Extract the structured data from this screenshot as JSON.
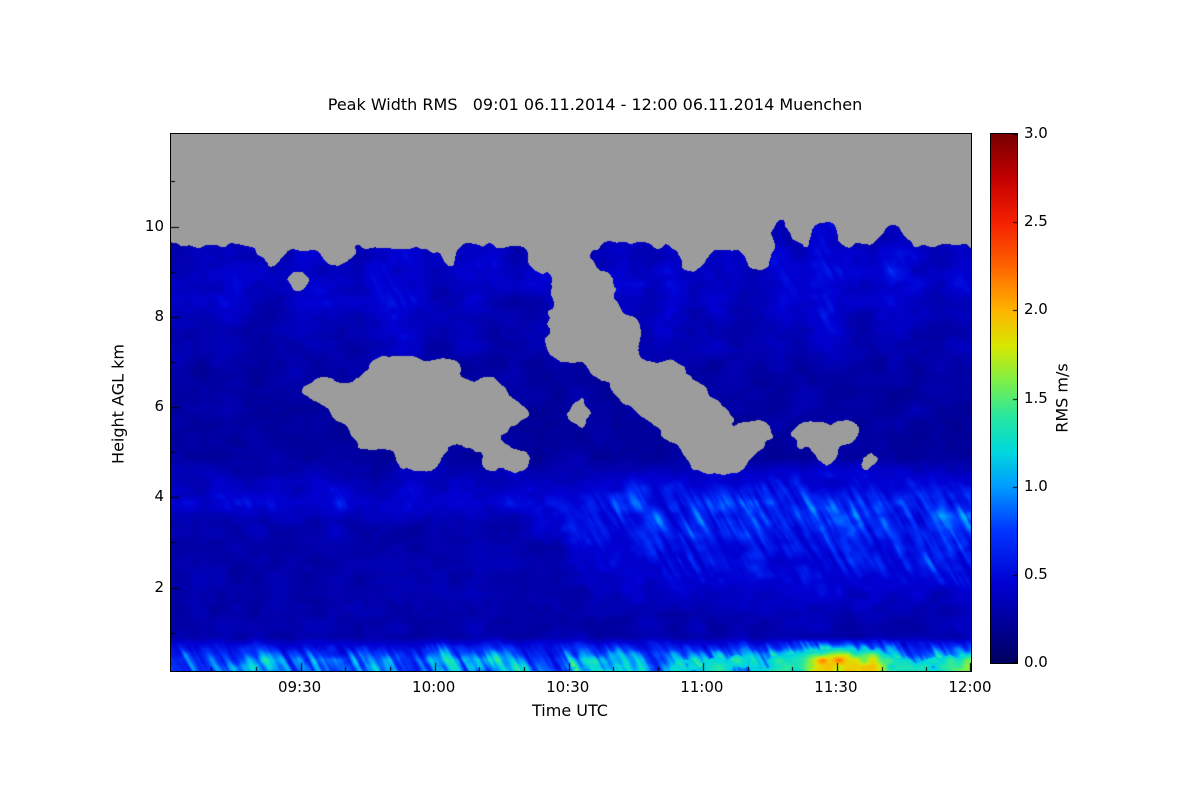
{
  "page": {
    "background": "#ffffff"
  },
  "chart_data": {
    "type": "heatmap",
    "title": "Peak Width RMS   09:01 06.11.2014 - 12:00 06.11.2014 Muenchen",
    "xlabel": "Time UTC",
    "ylabel": "Height AGL km",
    "colorbar_label": "RMS m/s",
    "x_range_hours": [
      9.0167,
      12.0
    ],
    "x_ticks": [
      {
        "hour": 9.5,
        "label": "09:30"
      },
      {
        "hour": 10.0,
        "label": "10:00"
      },
      {
        "hour": 10.5,
        "label": "10:30"
      },
      {
        "hour": 11.0,
        "label": "11:00"
      },
      {
        "hour": 11.5,
        "label": "11:30"
      },
      {
        "hour": 12.0,
        "label": "12:00"
      }
    ],
    "x_minor_step_minutes": 10,
    "y_range_km": [
      0.15,
      12.05
    ],
    "y_ticks": [
      {
        "km": 2,
        "label": "2"
      },
      {
        "km": 4,
        "label": "4"
      },
      {
        "km": 6,
        "label": "6"
      },
      {
        "km": 8,
        "label": "8"
      },
      {
        "km": 10,
        "label": "10"
      }
    ],
    "y_minor_step_km": 1,
    "value_range": [
      0.0,
      3.0
    ],
    "colorbar_ticks": [
      {
        "value": 0.0,
        "label": "0.0"
      },
      {
        "value": 0.5,
        "label": "0.5"
      },
      {
        "value": 1.0,
        "label": "1.0"
      },
      {
        "value": 1.5,
        "label": "1.5"
      },
      {
        "value": 2.0,
        "label": "2.0"
      },
      {
        "value": 2.5,
        "label": "2.5"
      },
      {
        "value": 3.0,
        "label": "3.0"
      }
    ],
    "no_data_color": "#9c9c9c",
    "colormap_stops": [
      {
        "v": 0.0,
        "c": "#000060"
      },
      {
        "v": 0.45,
        "c": "#0000d2"
      },
      {
        "v": 0.75,
        "c": "#0034ff"
      },
      {
        "v": 1.0,
        "c": "#009cff"
      },
      {
        "v": 1.2,
        "c": "#00d8dc"
      },
      {
        "v": 1.4,
        "c": "#28e8a0"
      },
      {
        "v": 1.6,
        "c": "#7ff046"
      },
      {
        "v": 1.8,
        "c": "#d8e800"
      },
      {
        "v": 2.0,
        "c": "#ffb400"
      },
      {
        "v": 2.25,
        "c": "#ff6400"
      },
      {
        "v": 2.5,
        "c": "#f52000"
      },
      {
        "v": 2.75,
        "c": "#c30000"
      },
      {
        "v": 3.0,
        "c": "#780000"
      }
    ],
    "grid_description": "Estimated RMS (m/s) on 36 time columns spanning 09:01-12:00 UTC by 24 height rows; rows listed top-down from 12.05 km to 0.15 km AGL; null = no data (gray). Values read off the colorbar: dark-blue background ~0.25-0.35, cloud layer 7.5-9.5 km ~0.35-0.55, cyan fall-streaks 2-4 km after 10:30 ~0.5-0.75, bright near-surface band ~0.9-1.1 with yellow maximum ~2.0 around 11:25-11:35.",
    "grid": [
      [
        null,
        null,
        null,
        null,
        null,
        null,
        null,
        null,
        null,
        null,
        null,
        null,
        null,
        null,
        null,
        null,
        null,
        null,
        null,
        null,
        null,
        null,
        null,
        null,
        null,
        null,
        null,
        null,
        null,
        null,
        null,
        null,
        null,
        null,
        null,
        null
      ],
      [
        null,
        null,
        null,
        null,
        null,
        null,
        null,
        null,
        null,
        null,
        null,
        null,
        null,
        null,
        null,
        null,
        null,
        null,
        null,
        null,
        null,
        null,
        null,
        null,
        null,
        null,
        null,
        null,
        null,
        null,
        null,
        null,
        null,
        null,
        null,
        null
      ],
      [
        null,
        null,
        null,
        null,
        null,
        null,
        null,
        null,
        null,
        null,
        null,
        null,
        null,
        null,
        null,
        null,
        null,
        null,
        null,
        null,
        null,
        null,
        null,
        null,
        null,
        null,
        null,
        null,
        null,
        null,
        null,
        null,
        null,
        null,
        null,
        null
      ],
      [
        null,
        null,
        null,
        null,
        null,
        null,
        null,
        null,
        null,
        null,
        null,
        null,
        null,
        null,
        null,
        null,
        null,
        null,
        null,
        null,
        null,
        null,
        null,
        null,
        null,
        null,
        null,
        null,
        null,
        null,
        null,
        null,
        null,
        null,
        null,
        null
      ],
      [
        null,
        null,
        null,
        null,
        null,
        null,
        null,
        null,
        null,
        null,
        null,
        null,
        null,
        null,
        null,
        null,
        null,
        null,
        null,
        null,
        null,
        null,
        null,
        null,
        null,
        null,
        null,
        0.35,
        null,
        0.45,
        null,
        null,
        0.35,
        null,
        null,
        null
      ],
      [
        0.3,
        0.35,
        0.45,
        0.4,
        null,
        0.35,
        0.4,
        null,
        0.35,
        0.4,
        0.45,
        0.35,
        null,
        0.35,
        0.4,
        0.35,
        null,
        null,
        null,
        0.35,
        0.4,
        0.35,
        0.45,
        null,
        0.4,
        0.35,
        null,
        0.45,
        0.4,
        0.5,
        0.4,
        0.35,
        0.45,
        0.4,
        0.35,
        0.4
      ],
      [
        0.4,
        0.45,
        0.5,
        0.4,
        0.35,
        null,
        0.4,
        0.45,
        0.4,
        0.5,
        0.45,
        0.4,
        0.35,
        0.45,
        0.4,
        0.35,
        0.4,
        null,
        null,
        null,
        0.45,
        0.4,
        0.5,
        0.35,
        0.45,
        0.4,
        0.35,
        0.5,
        0.45,
        0.55,
        0.45,
        0.4,
        0.5,
        0.45,
        0.4,
        0.45
      ],
      [
        0.35,
        0.4,
        0.45,
        0.35,
        0.3,
        0.35,
        0.45,
        0.4,
        0.35,
        0.45,
        0.5,
        0.4,
        0.35,
        0.4,
        0.35,
        0.3,
        0.35,
        null,
        null,
        null,
        0.4,
        0.35,
        0.45,
        0.3,
        0.4,
        0.35,
        0.3,
        0.45,
        0.4,
        0.5,
        0.4,
        0.35,
        0.45,
        0.4,
        0.35,
        0.4
      ],
      [
        0.35,
        0.35,
        0.4,
        0.3,
        0.3,
        0.35,
        0.4,
        0.35,
        0.3,
        0.4,
        0.45,
        0.35,
        0.3,
        0.35,
        0.3,
        0.3,
        0.35,
        null,
        null,
        null,
        null,
        0.35,
        0.4,
        0.3,
        0.35,
        0.3,
        0.3,
        0.4,
        0.35,
        0.45,
        0.35,
        0.3,
        0.4,
        0.35,
        0.3,
        0.35
      ],
      [
        0.3,
        0.3,
        0.35,
        0.3,
        0.25,
        0.3,
        0.35,
        0.3,
        0.3,
        0.35,
        0.4,
        0.3,
        0.3,
        0.35,
        0.3,
        0.25,
        0.3,
        null,
        null,
        null,
        null,
        0.3,
        0.35,
        0.3,
        0.35,
        0.3,
        0.3,
        0.35,
        0.3,
        0.4,
        0.35,
        0.3,
        0.35,
        0.3,
        0.3,
        0.35
      ],
      [
        0.3,
        0.25,
        0.3,
        0.25,
        0.25,
        0.3,
        0.25,
        0.3,
        0.25,
        null,
        null,
        null,
        null,
        0.25,
        0.25,
        0.3,
        0.25,
        0.3,
        0.25,
        null,
        null,
        null,
        null,
        0.3,
        0.25,
        0.3,
        0.25,
        0.3,
        0.25,
        0.3,
        0.25,
        0.25,
        0.3,
        0.25,
        0.3,
        0.3
      ],
      [
        0.25,
        0.3,
        0.25,
        0.25,
        0.3,
        0.25,
        null,
        null,
        null,
        null,
        null,
        null,
        null,
        null,
        null,
        0.25,
        0.3,
        0.25,
        0.3,
        0.25,
        null,
        null,
        null,
        null,
        0.25,
        0.3,
        0.25,
        0.25,
        0.3,
        0.25,
        0.25,
        0.3,
        0.25,
        0.25,
        0.3,
        0.25
      ],
      [
        0.25,
        0.25,
        0.3,
        0.25,
        0.25,
        0.25,
        0.25,
        null,
        null,
        null,
        null,
        null,
        null,
        null,
        null,
        null,
        0.25,
        0.25,
        null,
        0.25,
        0.25,
        null,
        null,
        null,
        null,
        0.25,
        0.25,
        0.3,
        0.25,
        0.25,
        0.25,
        0.25,
        0.25,
        0.3,
        0.25,
        0.25
      ],
      [
        0.25,
        0.25,
        0.25,
        0.3,
        0.25,
        0.25,
        0.25,
        0.25,
        null,
        null,
        null,
        null,
        null,
        null,
        null,
        0.25,
        0.25,
        0.25,
        0.25,
        0.25,
        0.25,
        0.25,
        null,
        null,
        null,
        null,
        null,
        0.25,
        null,
        null,
        null,
        0.25,
        0.25,
        0.25,
        0.25,
        0.25
      ],
      [
        0.3,
        0.25,
        0.25,
        0.25,
        0.3,
        0.25,
        0.25,
        0.3,
        0.25,
        0.25,
        null,
        null,
        0.25,
        0.25,
        null,
        null,
        0.25,
        0.25,
        0.3,
        0.25,
        0.25,
        0.25,
        0.25,
        null,
        null,
        null,
        0.25,
        0.25,
        0.25,
        null,
        0.25,
        null,
        0.3,
        0.25,
        0.25,
        0.25
      ],
      [
        0.35,
        0.35,
        0.4,
        0.35,
        0.35,
        0.35,
        0.4,
        0.35,
        0.35,
        0.35,
        0.4,
        0.35,
        0.35,
        0.35,
        0.35,
        0.4,
        0.35,
        0.35,
        0.4,
        0.4,
        0.45,
        0.45,
        0.45,
        0.4,
        0.45,
        0.45,
        0.45,
        0.5,
        0.45,
        0.45,
        0.5,
        0.45,
        0.45,
        0.5,
        0.45,
        0.45
      ],
      [
        0.45,
        0.4,
        0.45,
        0.5,
        0.45,
        0.4,
        0.45,
        0.5,
        0.45,
        0.45,
        0.5,
        0.45,
        0.4,
        0.45,
        0.45,
        0.5,
        0.45,
        0.5,
        0.55,
        0.6,
        0.65,
        0.6,
        0.7,
        0.65,
        0.7,
        0.75,
        0.7,
        0.65,
        0.75,
        0.7,
        0.65,
        0.7,
        0.75,
        0.7,
        0.65,
        0.7
      ],
      [
        0.3,
        0.3,
        0.3,
        0.35,
        0.3,
        0.3,
        0.3,
        0.35,
        0.3,
        0.3,
        0.3,
        0.3,
        0.35,
        0.3,
        0.3,
        0.3,
        0.4,
        0.5,
        0.55,
        0.6,
        0.55,
        0.65,
        0.6,
        0.7,
        0.65,
        0.6,
        0.7,
        0.65,
        0.6,
        0.7,
        0.75,
        0.65,
        0.7,
        0.75,
        0.7,
        0.75
      ],
      [
        0.3,
        0.3,
        0.3,
        0.3,
        0.3,
        0.3,
        0.3,
        0.3,
        0.3,
        0.3,
        0.3,
        0.3,
        0.3,
        0.3,
        0.3,
        0.3,
        0.3,
        0.35,
        0.5,
        0.55,
        0.5,
        0.6,
        0.55,
        0.6,
        0.55,
        0.5,
        0.6,
        0.55,
        0.6,
        0.65,
        0.6,
        0.55,
        0.65,
        0.6,
        0.65,
        0.6
      ],
      [
        0.3,
        0.3,
        0.3,
        0.3,
        0.3,
        0.3,
        0.3,
        0.3,
        0.3,
        0.3,
        0.3,
        0.3,
        0.3,
        0.3,
        0.3,
        0.3,
        0.3,
        0.3,
        0.4,
        0.45,
        0.5,
        0.45,
        0.55,
        0.5,
        0.45,
        0.55,
        0.5,
        0.45,
        0.55,
        0.5,
        0.55,
        0.5,
        0.55,
        0.5,
        0.55,
        0.5
      ],
      [
        0.3,
        0.3,
        0.3,
        0.3,
        0.3,
        0.3,
        0.3,
        0.3,
        0.3,
        0.3,
        0.3,
        0.3,
        0.3,
        0.3,
        0.3,
        0.3,
        0.3,
        0.3,
        0.3,
        0.35,
        0.4,
        0.35,
        0.45,
        0.4,
        0.35,
        0.45,
        0.4,
        0.45,
        0.4,
        0.45,
        0.4,
        0.45,
        0.4,
        0.45,
        0.4,
        0.45
      ],
      [
        0.3,
        0.3,
        0.3,
        0.3,
        0.3,
        0.3,
        0.3,
        0.3,
        0.3,
        0.3,
        0.3,
        0.3,
        0.3,
        0.3,
        0.3,
        0.3,
        0.3,
        0.3,
        0.3,
        0.3,
        0.3,
        0.35,
        0.3,
        0.35,
        0.3,
        0.35,
        0.35,
        0.3,
        0.35,
        0.35,
        0.3,
        0.35,
        0.35,
        0.3,
        0.35,
        0.35
      ],
      [
        0.3,
        0.3,
        0.35,
        0.3,
        0.3,
        0.3,
        0.35,
        0.3,
        0.3,
        0.35,
        0.3,
        0.3,
        0.3,
        0.35,
        0.3,
        0.3,
        0.3,
        0.3,
        0.35,
        0.3,
        0.3,
        0.35,
        0.3,
        0.35,
        0.3,
        0.35,
        0.3,
        0.35,
        0.3,
        0.35,
        0.3,
        0.35,
        0.3,
        0.35,
        0.3,
        0.35
      ],
      [
        0.9,
        0.85,
        0.9,
        0.95,
        0.9,
        0.85,
        0.9,
        0.95,
        0.9,
        0.85,
        0.9,
        0.95,
        1.0,
        0.9,
        0.95,
        1.0,
        1.05,
        1.0,
        1.1,
        1.0,
        0.95,
        1.0,
        1.1,
        1.05,
        1.1,
        1.3,
        1.2,
        1.3,
        1.6,
        1.9,
        2.0,
        1.7,
        1.3,
        1.1,
        1.2,
        1.4
      ]
    ]
  }
}
